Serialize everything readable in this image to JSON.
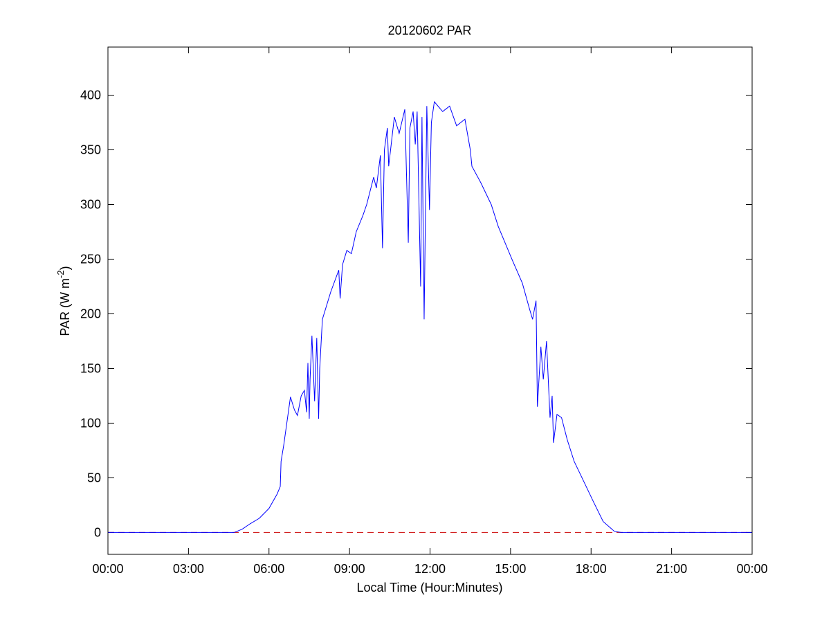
{
  "chart_data": {
    "type": "line",
    "title": "20120602 PAR",
    "x_label": "Local Time (Hour:Minutes)",
    "y_label": [
      "PAR (W m",
      "-2",
      ")"
    ],
    "xlim": [
      0,
      24
    ],
    "ylim": [
      -20,
      444
    ],
    "xticks": [
      {
        "value": 0,
        "label": "00:00"
      },
      {
        "value": 3,
        "label": "03:00"
      },
      {
        "value": 6,
        "label": "06:00"
      },
      {
        "value": 9,
        "label": "09:00"
      },
      {
        "value": 12,
        "label": "12:00"
      },
      {
        "value": 15,
        "label": "15:00"
      },
      {
        "value": 18,
        "label": "18:00"
      },
      {
        "value": 21,
        "label": "21:00"
      },
      {
        "value": 24,
        "label": "00:00"
      }
    ],
    "yticks": [
      0,
      50,
      100,
      150,
      200,
      250,
      300,
      350,
      400
    ],
    "reference_line": {
      "value": 0,
      "color": "#cc0000",
      "dashed": true
    },
    "series": [
      {
        "color": "#0000ff",
        "x": [
          0,
          4.7,
          5.0,
          5.3,
          5.64,
          6.0,
          6.3,
          6.42,
          6.45,
          6.55,
          6.8,
          6.95,
          7.06,
          7.2,
          7.32,
          7.4,
          7.45,
          7.5,
          7.53,
          7.6,
          7.7,
          7.78,
          7.85,
          7.89,
          7.99,
          8.3,
          8.6,
          8.65,
          8.74,
          8.9,
          9.07,
          9.25,
          9.5,
          9.64,
          9.9,
          10.0,
          10.15,
          10.23,
          10.3,
          10.41,
          10.46,
          10.67,
          10.85,
          11.06,
          11.19,
          11.25,
          11.37,
          11.45,
          11.52,
          11.65,
          11.7,
          11.78,
          11.88,
          11.98,
          12.05,
          12.16,
          12.47,
          12.73,
          12.99,
          13.3,
          13.5,
          13.56,
          13.89,
          14.28,
          14.54,
          15.05,
          15.44,
          15.7,
          15.82,
          15.95,
          16.0,
          16.13,
          16.22,
          16.34,
          16.47,
          16.55,
          16.6,
          16.73,
          16.9,
          17.11,
          17.37,
          17.76,
          18.09,
          18.45,
          18.87,
          19.12,
          24
        ],
        "values": [
          0,
          0,
          3,
          8,
          13,
          22,
          35,
          42,
          65,
          80,
          124,
          112,
          107,
          125,
          130,
          110,
          155,
          104,
          140,
          180,
          120,
          178,
          104,
          150,
          195,
          220,
          240,
          214,
          245,
          258,
          255,
          275,
          290,
          300,
          325,
          315,
          345,
          260,
          350,
          370,
          335,
          380,
          365,
          387,
          265,
          370,
          385,
          355,
          385,
          225,
          380,
          195,
          390,
          295,
          375,
          394,
          385,
          390,
          372,
          378,
          350,
          335,
          320,
          300,
          280,
          250,
          228,
          205,
          195,
          212,
          115,
          170,
          140,
          175,
          105,
          125,
          82,
          108,
          105,
          85,
          65,
          45,
          28,
          10,
          1,
          0,
          0
        ]
      }
    ]
  }
}
